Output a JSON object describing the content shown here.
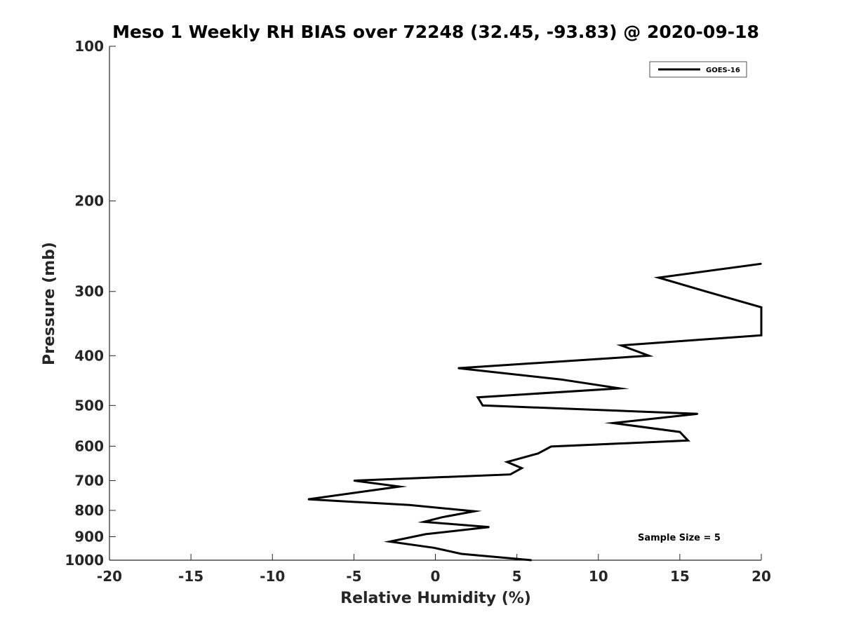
{
  "chart_data": {
    "type": "line",
    "title": "Meso 1 Weekly RH BIAS over 72248 (32.45, -93.83) @ 2020-09-18",
    "xlabel": "Relative Humidity (%)",
    "ylabel": "Pressure (mb)",
    "xlim": [
      -20,
      20
    ],
    "ylim": [
      100,
      1000
    ],
    "y_scale": "log",
    "y_reversed": true,
    "x_ticks": [
      "-20",
      "-15",
      "-10",
      "-5",
      "0",
      "5",
      "10",
      "15",
      "20"
    ],
    "y_ticks": [
      "100",
      "200",
      "300",
      "400",
      "500",
      "600",
      "700",
      "800",
      "900",
      "1000"
    ],
    "grid": false,
    "legend_position": "top-right",
    "annotation": "Sample Size = 5",
    "series": [
      {
        "name": "GOES-16",
        "color": "#000000",
        "points": [
          {
            "x": 20.0,
            "y": 265
          },
          {
            "x": 13.7,
            "y": 282
          },
          {
            "x": 16.6,
            "y": 300
          },
          {
            "x": 20.0,
            "y": 322
          },
          {
            "x": 20.0,
            "y": 365
          },
          {
            "x": 11.4,
            "y": 382
          },
          {
            "x": 13.1,
            "y": 400
          },
          {
            "x": 1.4,
            "y": 423
          },
          {
            "x": 7.7,
            "y": 445
          },
          {
            "x": 11.3,
            "y": 463
          },
          {
            "x": 2.6,
            "y": 482
          },
          {
            "x": 2.9,
            "y": 500
          },
          {
            "x": 16.1,
            "y": 519
          },
          {
            "x": 10.9,
            "y": 541
          },
          {
            "x": 15.0,
            "y": 563
          },
          {
            "x": 15.5,
            "y": 585
          },
          {
            "x": 7.1,
            "y": 601
          },
          {
            "x": 6.3,
            "y": 620
          },
          {
            "x": 4.4,
            "y": 644
          },
          {
            "x": 5.3,
            "y": 662
          },
          {
            "x": 4.6,
            "y": 681
          },
          {
            "x": -5.0,
            "y": 700
          },
          {
            "x": -2.2,
            "y": 719
          },
          {
            "x": -7.8,
            "y": 761
          },
          {
            "x": -1.6,
            "y": 781
          },
          {
            "x": 2.4,
            "y": 803
          },
          {
            "x": 0.4,
            "y": 825
          },
          {
            "x": -0.7,
            "y": 842
          },
          {
            "x": 3.3,
            "y": 862
          },
          {
            "x": -0.6,
            "y": 890
          },
          {
            "x": -2.8,
            "y": 920
          },
          {
            "x": -0.1,
            "y": 946
          },
          {
            "x": 1.6,
            "y": 972
          },
          {
            "x": 5.9,
            "y": 1000
          }
        ]
      }
    ]
  }
}
